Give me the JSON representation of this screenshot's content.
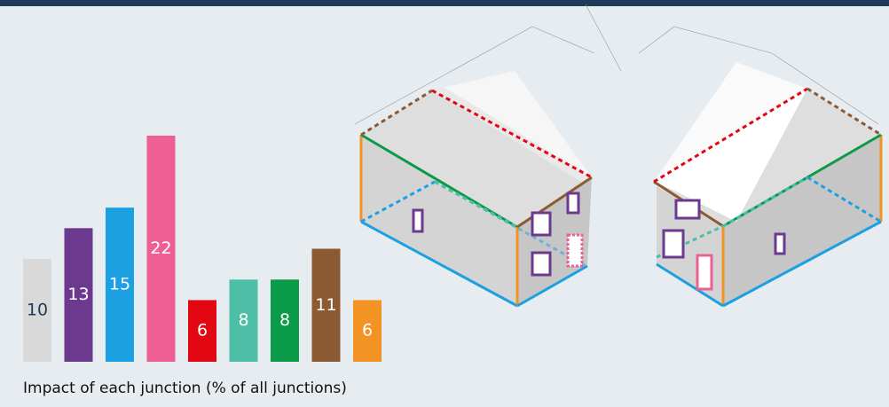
{
  "chart_data": {
    "type": "bar",
    "title": "Impact of each junction (% of all junctions)",
    "values": [
      10,
      13,
      15,
      22,
      6,
      8,
      8,
      11,
      6
    ],
    "colors": [
      "#d9d9d9",
      "#6b3a8e",
      "#1ba0e2",
      "#ee6094",
      "#e30613",
      "#4dbfa6",
      "#0a9a48",
      "#8b5a33",
      "#f39323"
    ]
  }
}
